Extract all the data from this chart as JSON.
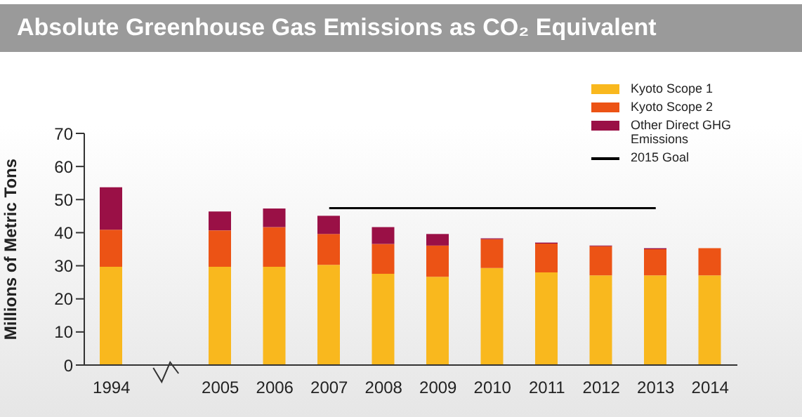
{
  "chart_data": {
    "type": "bar",
    "title": "Absolute Greenhouse Gas Emissions as CO₂ Equivalent",
    "ylabel": "Millions of Metric Tons",
    "categories": [
      "1994",
      null,
      "2005",
      "2006",
      "2007",
      "2008",
      "2009",
      "2010",
      "2011",
      "2012",
      "2013",
      "2014"
    ],
    "stacked": true,
    "series": [
      {
        "name": "Kyoto Scope 1",
        "color": "#f9b81e",
        "values": [
          29.7,
          null,
          29.7,
          29.7,
          30.3,
          27.6,
          26.7,
          29.3,
          28,
          27.1,
          27.1,
          27.1
        ]
      },
      {
        "name": "Kyoto Scope 2",
        "color": "#ec5315",
        "values": [
          11.2,
          null,
          11,
          12,
          9.3,
          9,
          9.4,
          8.7,
          8.7,
          8.8,
          7.9,
          8.2
        ]
      },
      {
        "name": "Other Direct GHG Emissions",
        "color": "#9a1046",
        "values": [
          12.8,
          null,
          5.7,
          5.6,
          5.5,
          5.1,
          3.5,
          0.3,
          0.3,
          0.2,
          0.3,
          null
        ]
      },
      {
        "name": "2015 Goal",
        "type": "line",
        "color": "#000000",
        "values": [
          null,
          null,
          null,
          null,
          47.4,
          47.4,
          47.4,
          47.4,
          47.4,
          47.4,
          47.4,
          null
        ]
      }
    ],
    "ylim": [
      0,
      70
    ],
    "yticks": [
      0,
      10,
      20,
      30,
      40,
      50,
      60,
      70
    ],
    "grid": false,
    "legend": "top right"
  }
}
